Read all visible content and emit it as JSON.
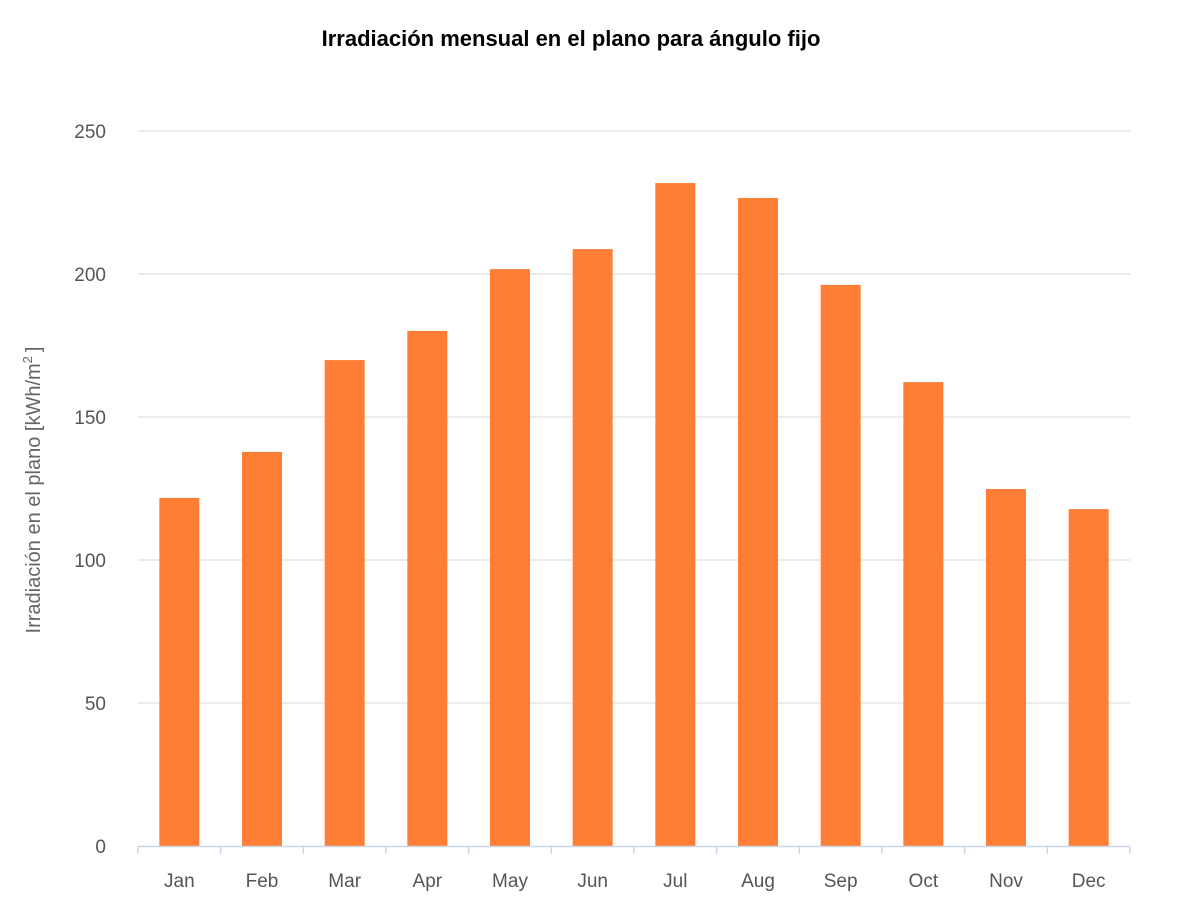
{
  "chart_data": {
    "type": "bar",
    "title": "Irradiación mensual en el plano para ángulo fijo",
    "xlabel": "",
    "ylabel": "Irradiación en el plano [kWh/m",
    "ylabel_sup": "2",
    "ylabel_close": "]",
    "categories": [
      "Jan",
      "Feb",
      "Mar",
      "Apr",
      "May",
      "Jun",
      "Jul",
      "Aug",
      "Sep",
      "Oct",
      "Nov",
      "Dec"
    ],
    "values": [
      121.7,
      137.8,
      169.9,
      180.1,
      201.7,
      208.7,
      231.8,
      226.6,
      196.2,
      162.2,
      124.8,
      117.8
    ],
    "ylim": [
      0,
      250
    ],
    "yticks": [
      "0",
      "50",
      "100",
      "150",
      "200",
      "250"
    ],
    "grid": true,
    "legend": "none",
    "colors": {
      "bar": "#fd7e34",
      "grid": "#d8d8d8",
      "axis": "#ccd6eb"
    }
  }
}
